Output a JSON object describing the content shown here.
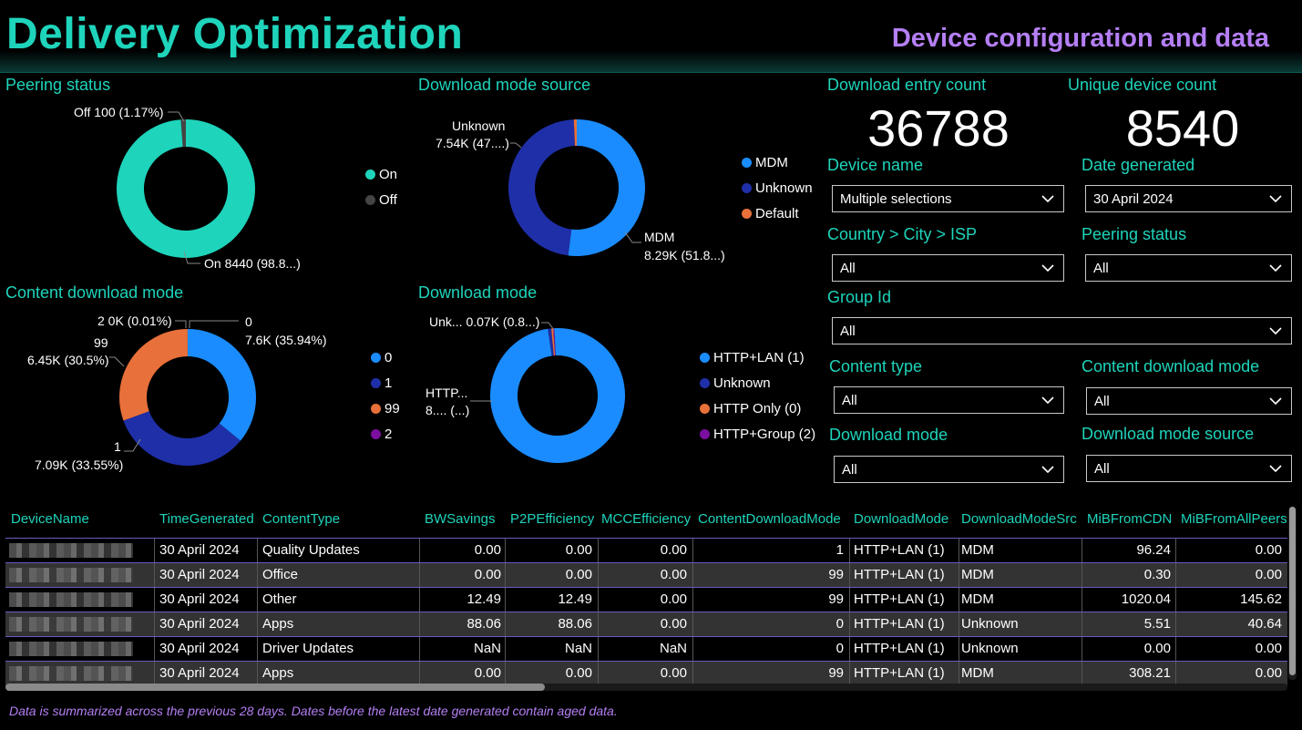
{
  "header": {
    "title": "Delivery Optimization",
    "subtitle": "Device configuration and data"
  },
  "colors": {
    "teal": "#1ed4bb",
    "purple": "#b57ff5",
    "blue": "#1a8cff",
    "navy": "#1f2fa8",
    "orange": "#e8703a",
    "violet": "#7a0fa0",
    "gray": "#444444"
  },
  "peering_chart": {
    "title": "Peering status",
    "labels": {
      "off": "Off 100 (1.17%)",
      "on": "On 8440 (98.8...)"
    },
    "legend": [
      "On",
      "Off"
    ],
    "chart_data": {
      "type": "pie",
      "slices": [
        {
          "name": "On",
          "value": 8440
        },
        {
          "name": "Off",
          "value": 100
        }
      ]
    }
  },
  "source_chart": {
    "title": "Download mode source",
    "labels": {
      "unknown_1": "Unknown",
      "unknown_2": "7.54K (47....)",
      "mdm_1": "MDM",
      "mdm_2": "8.29K (51.8...)"
    },
    "legend": [
      "MDM",
      "Unknown",
      "Default"
    ],
    "chart_data": {
      "type": "pie",
      "slices": [
        {
          "name": "MDM",
          "value": 8290
        },
        {
          "name": "Unknown",
          "value": 7540
        },
        {
          "name": "Default",
          "value": 110
        }
      ]
    }
  },
  "content_mode_chart": {
    "title": "Content download mode",
    "labels": {
      "two": "2 0K (0.01%)",
      "zero_1": "0",
      "zero_2": "7.6K (35.94%)",
      "ninetynine_1": "99",
      "ninetynine_2": "6.45K (30.5%)",
      "one_1": "1",
      "one_2": "7.09K (33.55%)"
    },
    "legend": [
      "0",
      "1",
      "99",
      "2"
    ],
    "chart_data": {
      "type": "pie",
      "slices": [
        {
          "name": "0",
          "value": 7600
        },
        {
          "name": "1",
          "value": 7090
        },
        {
          "name": "99",
          "value": 6450
        },
        {
          "name": "2",
          "value": 2
        }
      ]
    }
  },
  "mode_chart": {
    "title": "Download mode",
    "labels": {
      "unk": "Unk... 0.07K (0.8...)",
      "http_1": "HTTP...",
      "http_2": "8.... (...)"
    },
    "legend": [
      "HTTP+LAN (1)",
      "Unknown",
      "HTTP Only (0)",
      "HTTP+Group (2)"
    ],
    "chart_data": {
      "type": "pie",
      "slices": [
        {
          "name": "HTTP+LAN (1)",
          "value": 8400
        },
        {
          "name": "Unknown",
          "value": 70
        },
        {
          "name": "HTTP Only (0)",
          "value": 40
        },
        {
          "name": "HTTP+Group (2)",
          "value": 20
        }
      ]
    }
  },
  "kpis": {
    "entry_label": "Download entry count",
    "entry_value": "36788",
    "device_label": "Unique device count",
    "device_value": "8540"
  },
  "filters": {
    "device_name": {
      "label": "Device name",
      "value": "Multiple selections"
    },
    "date_generated": {
      "label": "Date generated",
      "value": "30 April 2024"
    },
    "geo": {
      "label": "Country > City > ISP",
      "value": "All"
    },
    "peering": {
      "label": "Peering status",
      "value": "All"
    },
    "group": {
      "label": "Group Id",
      "value": "All"
    },
    "content_type": {
      "label": "Content type",
      "value": "All"
    },
    "content_mode": {
      "label": "Content download mode",
      "value": "All"
    },
    "download_mode": {
      "label": "Download mode",
      "value": "All"
    },
    "mode_source": {
      "label": "Download mode source",
      "value": "All"
    }
  },
  "table": {
    "columns": [
      "DeviceName",
      "TimeGenerated",
      "ContentType",
      "BWSavings",
      "P2PEfficiency",
      "MCCEfficiency",
      "ContentDownloadMode",
      "DownloadMode",
      "DownloadModeSrc",
      "MiBFromCDN",
      "MiBFromAllPeers"
    ],
    "rows": [
      [
        "",
        "30 April 2024",
        "Quality Updates",
        "0.00",
        "0.00",
        "0.00",
        "1",
        "HTTP+LAN (1)",
        "MDM",
        "96.24",
        "0.00"
      ],
      [
        "",
        "30 April 2024",
        "Office",
        "0.00",
        "0.00",
        "0.00",
        "99",
        "HTTP+LAN (1)",
        "MDM",
        "0.30",
        "0.00"
      ],
      [
        "",
        "30 April 2024",
        "Other",
        "12.49",
        "12.49",
        "0.00",
        "99",
        "HTTP+LAN (1)",
        "MDM",
        "1020.04",
        "145.62"
      ],
      [
        "",
        "30 April 2024",
        "Apps",
        "88.06",
        "88.06",
        "0.00",
        "0",
        "HTTP+LAN (1)",
        "Unknown",
        "5.51",
        "40.64"
      ],
      [
        "",
        "30 April 2024",
        "Driver Updates",
        "NaN",
        "NaN",
        "NaN",
        "0",
        "HTTP+LAN (1)",
        "Unknown",
        "0.00",
        "0.00"
      ],
      [
        "",
        "30 April 2024",
        "Apps",
        "0.00",
        "0.00",
        "0.00",
        "99",
        "HTTP+LAN (1)",
        "MDM",
        "308.21",
        "0.00"
      ]
    ]
  },
  "footnote": "Data is summarized across the previous 28 days. Dates before the latest date generated contain aged data."
}
